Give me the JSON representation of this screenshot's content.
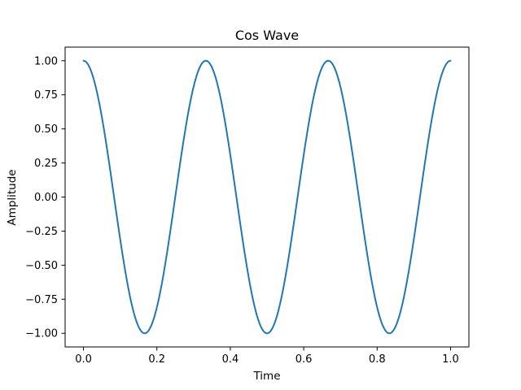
{
  "chart_data": {
    "type": "line",
    "title": "Cos Wave",
    "xlabel": "Time",
    "ylabel": "Amplitude",
    "xlim": [
      -0.05,
      1.05
    ],
    "ylim": [
      -1.1,
      1.1
    ],
    "xticks": [
      0.0,
      0.2,
      0.4,
      0.6,
      0.8,
      1.0
    ],
    "xtick_labels": [
      "0.0",
      "0.2",
      "0.4",
      "0.6",
      "0.8",
      "1.0"
    ],
    "yticks": [
      -1.0,
      -0.75,
      -0.5,
      -0.25,
      0.0,
      0.25,
      0.5,
      0.75,
      1.0
    ],
    "ytick_labels": [
      "−1.00",
      "−0.75",
      "−0.50",
      "−0.25",
      "0.00",
      "0.25",
      "0.50",
      "0.75",
      "1.00"
    ],
    "grid": false,
    "legend": "none",
    "series": [
      {
        "color": "#1f77b4",
        "function": "y = cos(2π · 3 · x)",
        "x": [
          0.0,
          0.025,
          0.05,
          0.075,
          0.1,
          0.125,
          0.15,
          0.175,
          0.2,
          0.225,
          0.25,
          0.275,
          0.3,
          0.325,
          0.35,
          0.375,
          0.4,
          0.425,
          0.45,
          0.475,
          0.5,
          0.525,
          0.55,
          0.575,
          0.6,
          0.625,
          0.65,
          0.675,
          0.7,
          0.725,
          0.75,
          0.775,
          0.8,
          0.825,
          0.85,
          0.875,
          0.9,
          0.925,
          0.95,
          0.975,
          1.0
        ],
        "y": [
          1.0,
          0.891,
          0.588,
          0.156,
          -0.309,
          -0.707,
          -0.951,
          -0.988,
          -0.809,
          -0.454,
          0.0,
          0.454,
          0.809,
          0.988,
          0.951,
          0.707,
          0.309,
          -0.156,
          -0.588,
          -0.891,
          -1.0,
          -0.891,
          -0.588,
          -0.156,
          0.309,
          0.707,
          0.951,
          0.988,
          0.809,
          0.454,
          0.0,
          -0.454,
          -0.809,
          -0.988,
          -0.951,
          -0.707,
          -0.309,
          0.156,
          0.588,
          0.891,
          1.0
        ]
      }
    ]
  }
}
